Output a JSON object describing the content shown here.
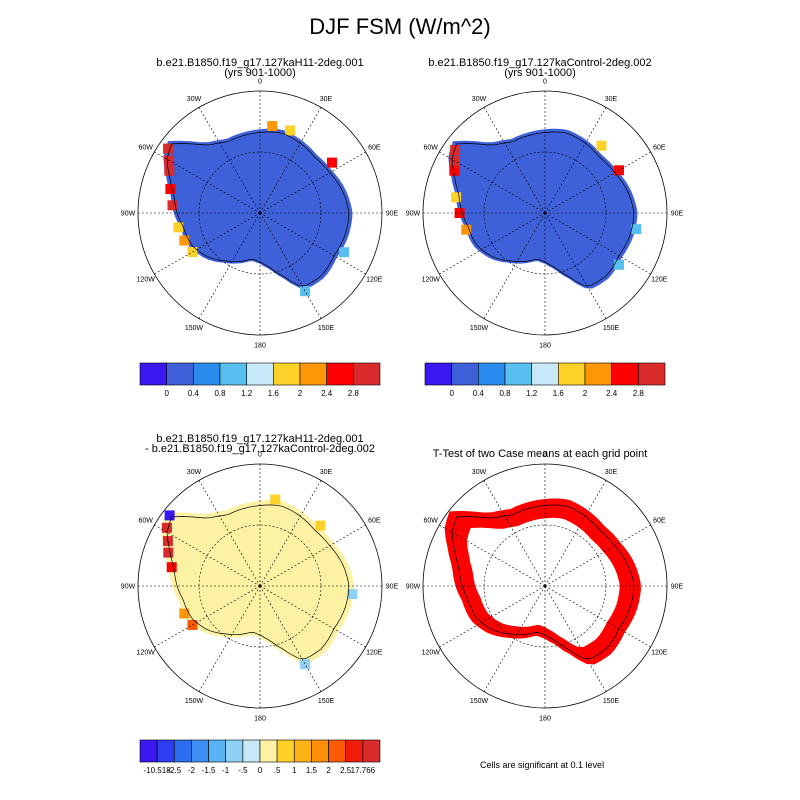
{
  "title": "DJF FSM (W/m^2)",
  "footnote": "Cells are significant at 0.1 level",
  "lon_labels": [
    "0",
    "30E",
    "60E",
    "90E",
    "120E",
    "150E",
    "180",
    "150W",
    "120W",
    "90W",
    "60W",
    "30W"
  ],
  "colors": {
    "ice_blue": "#3e60d8",
    "diff_yellow": "#fdf2a4",
    "ttest_red": "#ff0000",
    "coast": "#000000"
  },
  "chart_data": [
    {
      "type": "heatmap",
      "projection": "south-polar-stereographic",
      "title_line1": "b.e21.B1850.f19_g17.127kaH11-2deg.001",
      "title_line2": "(yrs 901-1000)",
      "colorbar": {
        "levels": [
          "0",
          "0.4",
          "0.8",
          "1.2",
          "1.6",
          "2",
          "2.4",
          "2.8"
        ],
        "colors": [
          "#3a18f0",
          "#3e60d8",
          "#2b8cf0",
          "#58c0f0",
          "#c6e8f7",
          "#fdd127",
          "#fd9708",
          "#fe0000",
          "#d92b2b"
        ]
      }
    },
    {
      "type": "heatmap",
      "projection": "south-polar-stereographic",
      "title_line1": "b.e21.B1850.f19_g17.127kaControl-2deg.002",
      "title_line2": "(yrs 901-1000)",
      "colorbar": {
        "levels": [
          "0",
          "0.4",
          "0.8",
          "1.2",
          "1.6",
          "2",
          "2.4",
          "2.8"
        ],
        "colors": [
          "#3a18f0",
          "#3e60d8",
          "#2b8cf0",
          "#58c0f0",
          "#c6e8f7",
          "#fdd127",
          "#fd9708",
          "#fe0000",
          "#d92b2b"
        ]
      }
    },
    {
      "type": "heatmap",
      "projection": "south-polar-stereographic",
      "title_line1": "b.e21.B1850.f19_g17.127kaH11-2deg.001",
      "title_line2": "- b.e21.B1850.f19_g17.127kaControl-2deg.002",
      "colorbar": {
        "levels": [
          "-10.518",
          "-2.5",
          "-2",
          "-1.5",
          "-1",
          "-.5",
          "0",
          ".5",
          "1",
          "1.5",
          "2",
          "2.5",
          "17.766"
        ],
        "colors": [
          "#3a18f0",
          "#2f3ef0",
          "#2b6ef0",
          "#3d8ff5",
          "#57b3f5",
          "#8fd0f5",
          "#c6e8f7",
          "#fdf2a4",
          "#fdd127",
          "#fdb316",
          "#fd8f08",
          "#fd5a05",
          "#f01c0a",
          "#d92b2b"
        ]
      }
    },
    {
      "type": "heatmap",
      "projection": "south-polar-stereographic",
      "title_line1": "T-Test of two Case means at each grid point",
      "title_line2": ""
    }
  ]
}
